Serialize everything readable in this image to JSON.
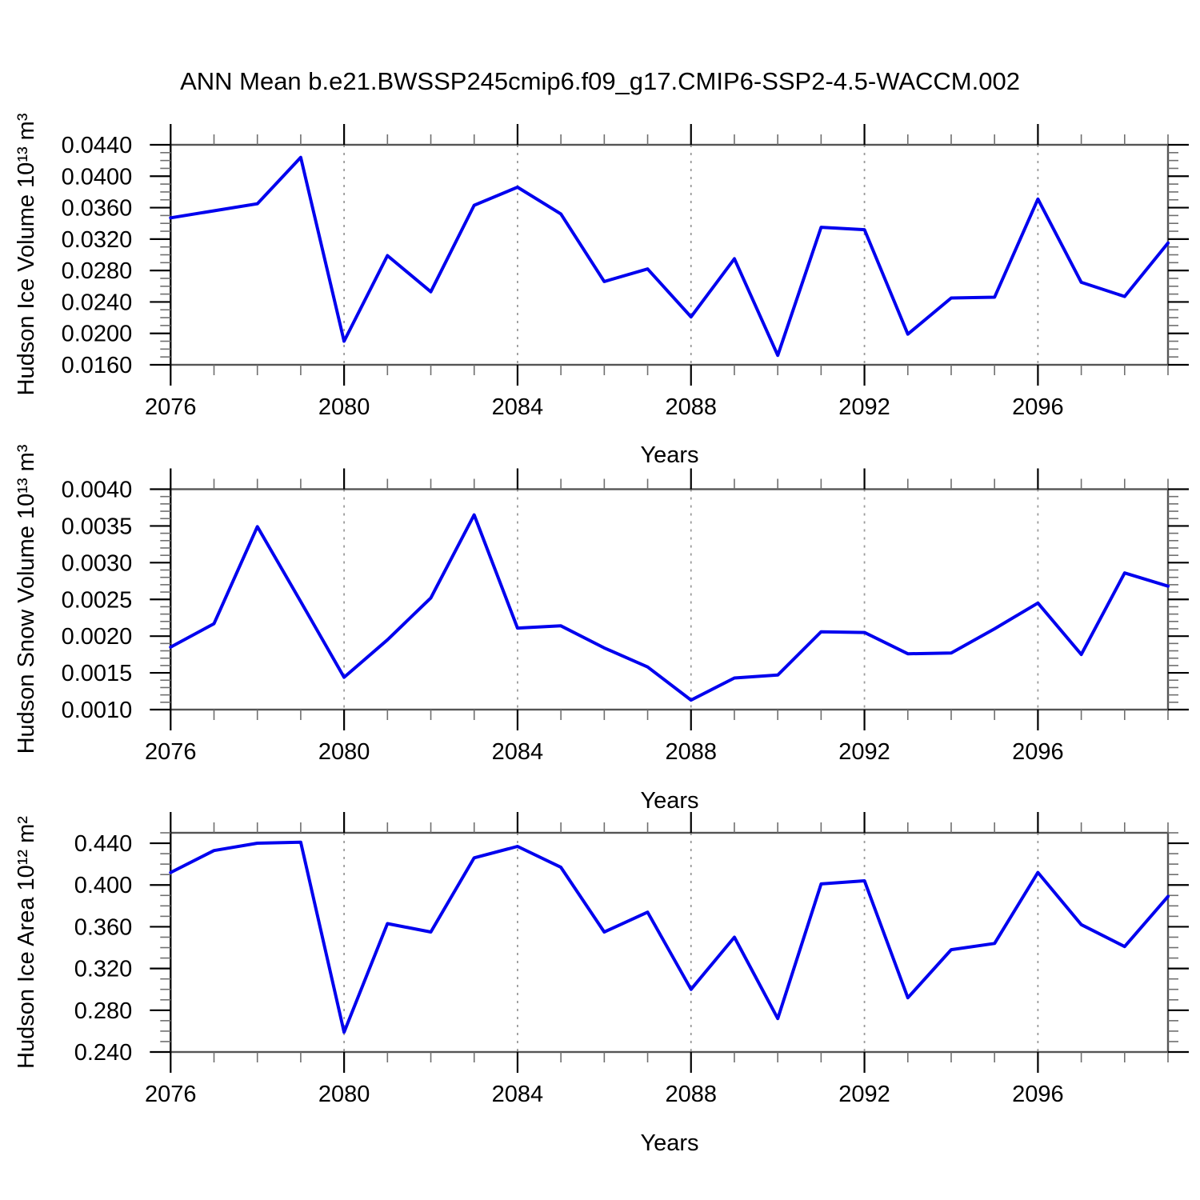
{
  "title": "ANN Mean b.e21.BWSSP245cmip6.f09_g17.CMIP6-SSP2-4.5-WACCM.002",
  "series_color": "#0000ee",
  "chart_data": [
    {
      "type": "line",
      "name": "hudson-ice-volume",
      "ylabel": "Hudson Ice Volume 10¹³ m³",
      "xlabel": "Years",
      "x": [
        2076,
        2077,
        2078,
        2079,
        2080,
        2081,
        2082,
        2083,
        2084,
        2085,
        2086,
        2087,
        2088,
        2089,
        2090,
        2091,
        2092,
        2093,
        2094,
        2095,
        2096,
        2097,
        2098,
        2099
      ],
      "values": [
        0.0347,
        0.0356,
        0.0365,
        0.0424,
        0.019,
        0.0299,
        0.0253,
        0.0363,
        0.0386,
        0.0352,
        0.0266,
        0.0282,
        0.0221,
        0.0295,
        0.0172,
        0.0335,
        0.0332,
        0.0199,
        0.0245,
        0.0246,
        0.0371,
        0.0265,
        0.0247,
        0.0315
      ],
      "ylim": [
        0.016,
        0.044
      ],
      "ytick_values": [
        0.016,
        0.02,
        0.024,
        0.028,
        0.032,
        0.036,
        0.04,
        0.044
      ],
      "ytick_labels": [
        "0.0160",
        "0.0200",
        "0.0240",
        "0.0280",
        "0.0320",
        "0.0360",
        "0.0400",
        "0.0440"
      ],
      "y_minor_step": 0.001,
      "xtick_values": [
        2076,
        2080,
        2084,
        2088,
        2092,
        2096
      ],
      "x_minor_step": 1,
      "gridline_years": [
        2080,
        2084,
        2088,
        2092,
        2096
      ],
      "grid": "vertical-dashed",
      "legend": "none"
    },
    {
      "type": "line",
      "name": "hudson-snow-volume",
      "ylabel": "Hudson Snow Volume 10¹³ m³",
      "xlabel": "Years",
      "x": [
        2076,
        2077,
        2078,
        2079,
        2080,
        2081,
        2082,
        2083,
        2084,
        2085,
        2086,
        2087,
        2088,
        2089,
        2090,
        2091,
        2092,
        2093,
        2094,
        2095,
        2096,
        2097,
        2098,
        2099
      ],
      "values": [
        0.00185,
        0.00217,
        0.00349,
        0.00247,
        0.00144,
        0.00195,
        0.00252,
        0.00365,
        0.00211,
        0.00214,
        0.00184,
        0.00158,
        0.00113,
        0.00143,
        0.00147,
        0.00206,
        0.00205,
        0.00176,
        0.00177,
        0.0021,
        0.00245,
        0.00175,
        0.00286,
        0.00268
      ],
      "ylim": [
        0.001,
        0.004
      ],
      "ytick_values": [
        0.001,
        0.0015,
        0.002,
        0.0025,
        0.003,
        0.0035,
        0.004
      ],
      "ytick_labels": [
        "0.0010",
        "0.0015",
        "0.0020",
        "0.0025",
        "0.0030",
        "0.0035",
        "0.0040"
      ],
      "y_minor_step": 0.0001,
      "xtick_values": [
        2076,
        2080,
        2084,
        2088,
        2092,
        2096
      ],
      "x_minor_step": 1,
      "gridline_years": [
        2080,
        2084,
        2088,
        2092,
        2096
      ],
      "grid": "vertical-dashed",
      "legend": "none"
    },
    {
      "type": "line",
      "name": "hudson-ice-area",
      "ylabel": "Hudson Ice Area 10¹² m²",
      "xlabel": "Years",
      "x": [
        2076,
        2077,
        2078,
        2079,
        2080,
        2081,
        2082,
        2083,
        2084,
        2085,
        2086,
        2087,
        2088,
        2089,
        2090,
        2091,
        2092,
        2093,
        2094,
        2095,
        2096,
        2097,
        2098,
        2099
      ],
      "values": [
        0.412,
        0.433,
        0.44,
        0.441,
        0.259,
        0.363,
        0.355,
        0.426,
        0.437,
        0.417,
        0.355,
        0.374,
        0.3,
        0.35,
        0.272,
        0.401,
        0.404,
        0.292,
        0.338,
        0.344,
        0.412,
        0.362,
        0.341,
        0.389
      ],
      "ylim": [
        0.24,
        0.45
      ],
      "ytick_values": [
        0.24,
        0.28,
        0.32,
        0.36,
        0.4,
        0.44
      ],
      "ytick_labels": [
        "0.240",
        "0.280",
        "0.320",
        "0.360",
        "0.400",
        "0.440"
      ],
      "y_minor_step": 0.01,
      "xtick_values": [
        2076,
        2080,
        2084,
        2088,
        2092,
        2096
      ],
      "x_minor_step": 1,
      "gridline_years": [
        2080,
        2084,
        2088,
        2092,
        2096
      ],
      "grid": "vertical-dashed",
      "legend": "none"
    }
  ]
}
